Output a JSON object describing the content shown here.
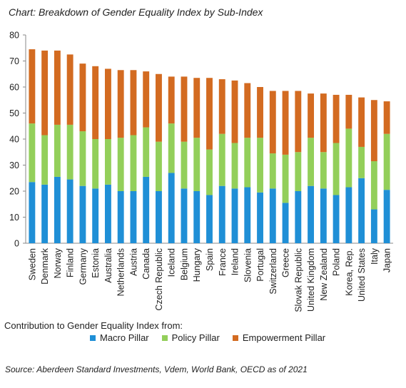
{
  "chart_data": {
    "type": "bar",
    "stacked": true,
    "title": "Chart: Breakdown of Gender Equality Index by Sub-Index",
    "categories": [
      "Sweden",
      "Denmark",
      "Norway",
      "Finland",
      "Germany",
      "Estonia",
      "Australia",
      "Netherlands",
      "Austria",
      "Canada",
      "Czech Republic",
      "Iceland",
      "Belgium",
      "Hungary",
      "Spain",
      "France",
      "Ireland",
      "Slovenia",
      "Portugal",
      "Switzerland",
      "Greece",
      "Slovak Republic",
      "United Kingdom",
      "New Zealand",
      "Poland",
      "Korea, Rep.",
      "United States",
      "Italy",
      "Japan"
    ],
    "series": [
      {
        "name": "Macro Pillar",
        "color": "#1f8fd6",
        "values": [
          23.5,
          22.5,
          25.5,
          24.5,
          22,
          21,
          22.5,
          20,
          20,
          25.5,
          20,
          27,
          21,
          20,
          18.5,
          22,
          21,
          21.5,
          19.5,
          21,
          15.5,
          20,
          22,
          21,
          18.5,
          21.5,
          25,
          13,
          20.5
        ]
      },
      {
        "name": "Policy Pillar",
        "color": "#93cf5a",
        "values": [
          22.5,
          19,
          20,
          21,
          21,
          19,
          17.5,
          20.5,
          21.5,
          19,
          19,
          19,
          18,
          20.5,
          17.5,
          20,
          17.5,
          19,
          21,
          13.5,
          18.5,
          15,
          18.5,
          14,
          20,
          22.5,
          12,
          18.5,
          21.5
        ]
      },
      {
        "name": "Empowerment Pillar",
        "color": "#d36b21",
        "values": [
          28.5,
          32.5,
          28.5,
          27,
          26,
          28,
          27,
          26,
          25,
          21.5,
          26,
          18,
          25,
          23,
          27.5,
          21,
          24,
          21,
          19.5,
          24,
          24.5,
          23.5,
          17,
          22.5,
          18.5,
          13,
          19,
          23.5,
          12.5
        ]
      }
    ],
    "ylim": [
      0,
      80
    ],
    "yticks": [
      "0",
      "10",
      "20",
      "30",
      "40",
      "50",
      "60",
      "70",
      "80"
    ],
    "grid": false,
    "legend_title": "Contribution  to Gender  Equality Index from:",
    "legend_position": "bottom-left",
    "source": "Source: Aberdeen Standard Investments, Vdem, World Bank, OECD as of 2021"
  }
}
